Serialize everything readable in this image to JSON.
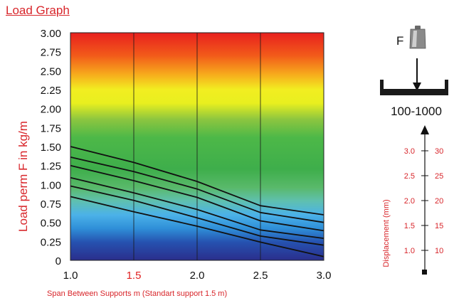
{
  "page": {
    "title": "Load Graph"
  },
  "chart_data": {
    "type": "line",
    "title": "",
    "xlabel": "Span Between Supports m (Standart support 1.5 m)",
    "ylabel": "Load perm F in kg/m",
    "xlim": [
      1.0,
      3.0
    ],
    "ylim": [
      0,
      3.0
    ],
    "x_ticks": [
      "1.0",
      "1.5",
      "2.0",
      "2.5",
      "3.0"
    ],
    "y_ticks": [
      "0",
      "0.25",
      "0.50",
      "0.75",
      "1.00",
      "1.25",
      "1.50",
      "1.75",
      "2.00",
      "2.25",
      "2.50",
      "2.75",
      "3.00"
    ],
    "grid": true,
    "background": "vertical gradient red (top) to dark blue (bottom)",
    "highlight_color": "#e02020",
    "series": [
      {
        "x": [
          1.0,
          1.5,
          2.0,
          2.5,
          3.0
        ],
        "values": [
          1.5,
          1.29,
          1.04,
          0.72,
          0.6
        ]
      },
      {
        "x": [
          1.0,
          1.5,
          2.0,
          2.5,
          3.0
        ],
        "values": [
          1.36,
          1.17,
          0.94,
          0.63,
          0.5
        ]
      },
      {
        "x": [
          1.0,
          1.5,
          2.0,
          2.5,
          3.0
        ],
        "values": [
          1.25,
          1.05,
          0.83,
          0.52,
          0.39
        ]
      },
      {
        "x": [
          1.0,
          1.5,
          2.0,
          2.5,
          3.0
        ],
        "values": [
          1.09,
          0.89,
          0.67,
          0.4,
          0.29
        ]
      },
      {
        "x": [
          1.0,
          1.5,
          2.0,
          2.5,
          3.0
        ],
        "values": [
          0.98,
          0.79,
          0.56,
          0.32,
          0.2
        ]
      },
      {
        "x": [
          1.0,
          1.5,
          2.0,
          2.5,
          3.0
        ],
        "values": [
          0.84,
          0.64,
          0.45,
          0.24,
          0.05
        ]
      }
    ]
  },
  "diagram": {
    "force_label": "F",
    "range_label": "100-1000"
  },
  "displacement_scale": {
    "label": "Displacement (mm)",
    "left_ticks": [
      "3.0",
      "2.5",
      "2.0",
      "1.5",
      "1.0"
    ],
    "right_ticks": [
      "30",
      "25",
      "20",
      "15",
      "10"
    ],
    "text_color": "#d8262b"
  }
}
